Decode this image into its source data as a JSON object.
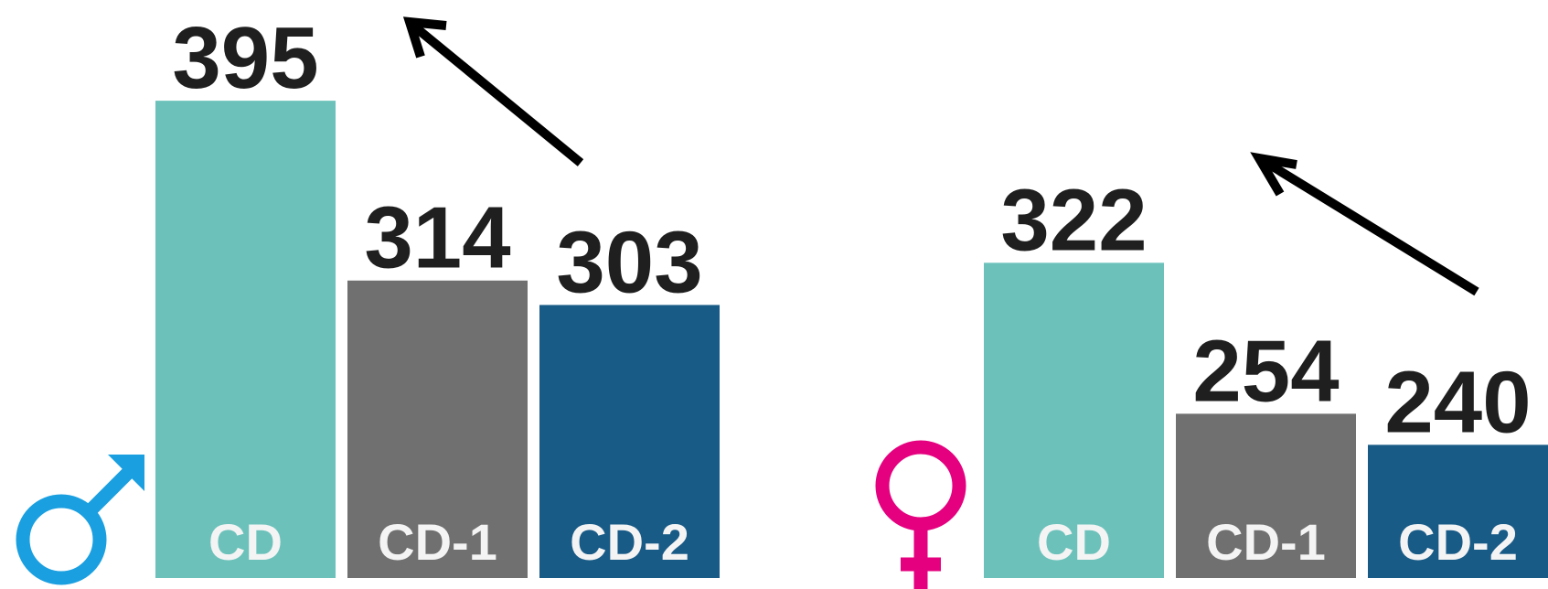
{
  "chart_data": [
    {
      "type": "bar",
      "categories": [
        "CD",
        "CD-1",
        "CD-2"
      ],
      "values": [
        395,
        314,
        303
      ],
      "colors": [
        "#6cc2bb",
        "#707070",
        "#195b87"
      ],
      "ylim": [
        180,
        400
      ]
    },
    {
      "type": "bar",
      "categories": [
        "CD",
        "CD-1",
        "CD-2"
      ],
      "values": [
        322,
        254,
        240
      ],
      "colors": [
        "#6cc2bb",
        "#707070",
        "#195b87"
      ],
      "ylim": [
        180,
        400
      ]
    }
  ]
}
